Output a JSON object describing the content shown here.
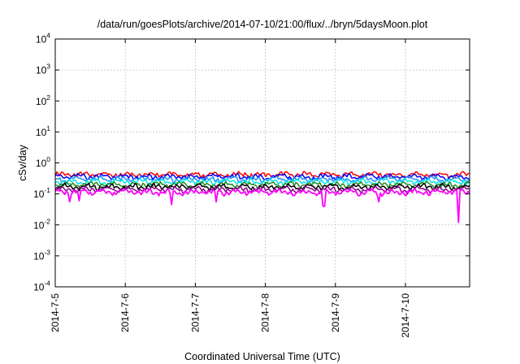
{
  "chart_data": {
    "type": "line",
    "title": "/data/run/goesPlots/archive/2014-07-10/21:00/flux/../bryn/5daysMoon.plot",
    "xlabel": "Coordinated Universal Time (UTC)",
    "ylabel": "cSv/day",
    "x_ticks": [
      "2014-7-5",
      "2014-7-6",
      "2014-7-7",
      "2014-7-8",
      "2014-7-9",
      "2014-7-10"
    ],
    "xlim": [
      "2014-07-05T00:00",
      "2014-07-10T22:00"
    ],
    "y_scale": "log",
    "ylim": [
      0.0001,
      10000
    ],
    "y_ticks": [
      {
        "base": "10",
        "exp": "-4",
        "value": 0.0001
      },
      {
        "base": "10",
        "exp": "-3",
        "value": 0.001
      },
      {
        "base": "10",
        "exp": "-2",
        "value": 0.01
      },
      {
        "base": "10",
        "exp": "-1",
        "value": 0.1
      },
      {
        "base": "10",
        "exp": "0",
        "value": 1
      },
      {
        "base": "10",
        "exp": "1",
        "value": 10
      },
      {
        "base": "10",
        "exp": "2",
        "value": 100
      },
      {
        "base": "10",
        "exp": "3",
        "value": 1000
      },
      {
        "base": "10",
        "exp": "4",
        "value": 10000
      }
    ],
    "grid": true,
    "legend": "none",
    "series": [
      {
        "color": "#ff0000",
        "base": 0.42,
        "dips": []
      },
      {
        "color": "#0000ff",
        "base": 0.36,
        "dips": []
      },
      {
        "color": "#1e90ff",
        "base": 0.3,
        "dips": []
      },
      {
        "color": "#00e5e5",
        "base": 0.25,
        "dips": []
      },
      {
        "color": "#228b22",
        "base": 0.2,
        "dips": []
      },
      {
        "color": "#000000",
        "base": 0.17,
        "dips": []
      },
      {
        "color": "#8b008b",
        "base": 0.14,
        "dips": []
      },
      {
        "color": "#ff00ff",
        "base": 0.115,
        "dips": [
          {
            "x": "2014-07-05T05:00",
            "y": 0.055
          },
          {
            "x": "2014-07-05T08:00",
            "y": 0.06
          },
          {
            "x": "2014-07-06T16:00",
            "y": 0.045
          },
          {
            "x": "2014-07-07T07:00",
            "y": 0.055
          },
          {
            "x": "2014-07-08T20:00",
            "y": 0.04
          },
          {
            "x": "2014-07-09T15:00",
            "y": 0.055
          },
          {
            "x": "2014-07-10T18:00",
            "y": 0.012
          }
        ]
      }
    ]
  }
}
